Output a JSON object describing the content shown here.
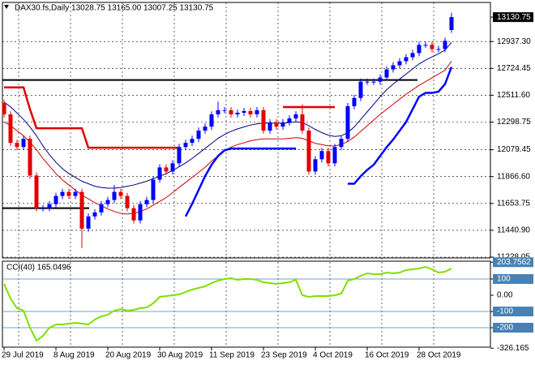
{
  "chart_data": [
    {
      "type": "candlestick",
      "title": "DAX30.fs,Daily  13028.75 13165.00 13007.25 13130.75",
      "categories": [
        "29 Jul 2019",
        null,
        null,
        null,
        null,
        null,
        null,
        null,
        "8 Aug 2019",
        null,
        null,
        null,
        null,
        null,
        null,
        null,
        "20 Aug 2019",
        null,
        null,
        null,
        null,
        null,
        null,
        null,
        "30 Aug 2019",
        null,
        null,
        null,
        null,
        null,
        null,
        null,
        "11 Sep 2019",
        null,
        null,
        null,
        null,
        null,
        null,
        null,
        "23 Sep 2019",
        null,
        null,
        null,
        null,
        null,
        null,
        null,
        "4 Oct 2019",
        null,
        null,
        null,
        null,
        null,
        null,
        null,
        "16 Oct 2019",
        null,
        null,
        null,
        null,
        null,
        null,
        null,
        "28 Oct 2019",
        null,
        null,
        null,
        null,
        null
      ],
      "open": [
        12450,
        12360,
        12134,
        12101,
        12166,
        11875,
        11616,
        11616,
        11648,
        11713,
        11745,
        11713,
        11745,
        11454,
        11551,
        11583,
        11648,
        11681,
        11745,
        11713,
        11616,
        11519,
        11648,
        11681,
        11842,
        11939,
        11907,
        11972,
        12101,
        12134,
        12166,
        12231,
        12263,
        12360,
        12393,
        12393,
        12360,
        12373,
        12386,
        12360,
        12393,
        12231,
        12296,
        12263,
        12296,
        12328,
        12360,
        12231,
        11907,
        12004,
        12069,
        11972,
        12101,
        12166,
        12425,
        12490,
        12619,
        12619,
        12619,
        12652,
        12716,
        12749,
        12781,
        12813,
        12846,
        12911,
        12911,
        12878,
        12878,
        13028.75
      ],
      "high": [
        12475,
        12385,
        12159,
        12191,
        12191,
        11900,
        11641,
        11673,
        11738,
        11770,
        11770,
        11770,
        11770,
        11576,
        11608,
        11673,
        11706,
        11800,
        11770,
        11738,
        11641,
        11673,
        11706,
        11867,
        11964,
        11964,
        11997,
        12126,
        12159,
        12191,
        12256,
        12288,
        12385,
        12460,
        12418,
        12418,
        12398,
        12411,
        12411,
        12418,
        12418,
        12321,
        12321,
        12321,
        12353,
        12385,
        12440,
        12256,
        12029,
        12094,
        12094,
        12126,
        12191,
        12450,
        12515,
        12644,
        12644,
        12644,
        12677,
        12741,
        12774,
        12806,
        12838,
        12871,
        12936,
        12936,
        12936,
        12903,
        12968,
        13165
      ],
      "low": [
        12335,
        12109,
        12076,
        12076,
        11850,
        11591,
        11591,
        11591,
        11623,
        11688,
        11688,
        11688,
        11300,
        11429,
        11526,
        11558,
        11623,
        11656,
        11688,
        11591,
        11494,
        11494,
        11623,
        11656,
        11817,
        11882,
        11882,
        11947,
        12076,
        12109,
        12141,
        12206,
        12238,
        12335,
        12368,
        12335,
        12335,
        12348,
        12335,
        12335,
        12206,
        12206,
        12238,
        12238,
        12271,
        12303,
        12206,
        11882,
        11882,
        11979,
        11947,
        11947,
        12076,
        12141,
        12400,
        12465,
        12594,
        12594,
        12594,
        12627,
        12691,
        12724,
        12756,
        12788,
        12821,
        12886,
        12853,
        12853,
        12853,
        13007.25
      ],
      "close": [
        12360,
        12134,
        12101,
        12166,
        11875,
        11616,
        11616,
        11648,
        11713,
        11745,
        11713,
        11745,
        11454,
        11551,
        11583,
        11648,
        11681,
        11745,
        11713,
        11616,
        11519,
        11648,
        11681,
        11842,
        11939,
        11907,
        11972,
        12101,
        12134,
        12166,
        12231,
        12263,
        12360,
        12393,
        12393,
        12360,
        12373,
        12386,
        12360,
        12393,
        12231,
        12296,
        12263,
        12296,
        12328,
        12360,
        12231,
        11907,
        12004,
        12069,
        11972,
        12101,
        12166,
        12425,
        12490,
        12619,
        12619,
        12619,
        12652,
        12716,
        12749,
        12781,
        12813,
        12846,
        12911,
        12911,
        12878,
        12878,
        12943,
        13130.75
      ],
      "up_color": "#0000ff",
      "down_color": "#e00000",
      "overlays": [
        {
          "color": "#000080",
          "width": 1,
          "values": [
            12457,
            12420,
            12370,
            12320,
            12260,
            12190,
            12110,
            12040,
            11980,
            11930,
            11890,
            11860,
            11830,
            11810,
            11790,
            11780,
            11775,
            11775,
            11780,
            11790,
            11800,
            11815,
            11830,
            11850,
            11870,
            11890,
            11915,
            11945,
            11975,
            12010,
            12050,
            12090,
            12130,
            12170,
            12200,
            12225,
            12245,
            12260,
            12275,
            12285,
            12290,
            12290,
            12290,
            12290,
            12295,
            12300,
            12295,
            12270,
            12240,
            12215,
            12195,
            12185,
            12190,
            12215,
            12260,
            12320,
            12380,
            12440,
            12500,
            12555,
            12600,
            12640,
            12680,
            12720,
            12760,
            12790,
            12815,
            12840,
            12870,
            12930
          ]
        },
        {
          "color": "#d00000",
          "width": 1,
          "values": [
            12300,
            12270,
            12230,
            12190,
            12140,
            12080,
            12010,
            11950,
            11890,
            11840,
            11800,
            11760,
            11720,
            11690,
            11660,
            11635,
            11610,
            11590,
            11575,
            11570,
            11575,
            11590,
            11610,
            11640,
            11670,
            11700,
            11740,
            11780,
            11820,
            11860,
            11900,
            11940,
            11990,
            12030,
            12070,
            12100,
            12120,
            12135,
            12150,
            12160,
            12165,
            12165,
            12165,
            12165,
            12170,
            12175,
            12170,
            12150,
            12130,
            12120,
            12110,
            12110,
            12120,
            12145,
            12180,
            12225,
            12270,
            12315,
            12360,
            12400,
            12440,
            12480,
            12520,
            12555,
            12590,
            12620,
            12650,
            12680,
            12710,
            12781
          ]
        },
        {
          "color": "#e00000",
          "width": 2.5,
          "values": [
            12574,
            12574,
            12574,
            12574,
            12400,
            12250,
            12250,
            12250,
            12250,
            12250,
            12250,
            12250,
            12250,
            12095,
            12095,
            12095,
            12095,
            12095,
            12095,
            12095,
            12095,
            12095,
            12095,
            12095,
            12095,
            12095,
            12095,
            12095,
            null,
            null,
            null,
            null,
            null,
            null,
            null,
            null,
            null,
            null,
            null,
            null,
            null,
            null,
            null,
            12418,
            12418,
            12418,
            12418,
            12418,
            12418,
            12418,
            12418,
            12418,
            null,
            null,
            null,
            null,
            null,
            null,
            null,
            null,
            null,
            null,
            null,
            null,
            null,
            null,
            null,
            null,
            null,
            null
          ]
        },
        {
          "color": "#0000ff",
          "width": 2.5,
          "values": [
            null,
            null,
            null,
            null,
            null,
            null,
            null,
            null,
            null,
            null,
            null,
            null,
            null,
            null,
            null,
            null,
            null,
            null,
            null,
            null,
            null,
            null,
            null,
            null,
            null,
            null,
            null,
            null,
            11551,
            11650,
            11760,
            11870,
            11960,
            12030,
            12075,
            12089,
            12089,
            12089,
            12089,
            12089,
            12089,
            12089,
            12089,
            12089,
            12089,
            12089,
            null,
            null,
            null,
            null,
            null,
            null,
            null,
            11810,
            11810,
            11870,
            11920,
            11960,
            12030,
            12100,
            12160,
            12230,
            12300,
            12400,
            12500,
            12530,
            12530,
            12540,
            12600,
            12736
          ]
        }
      ],
      "levels": [
        12632,
        11616
      ],
      "ylim": [
        11221.6,
        13247.3
      ],
      "yticks": [
        13130.75,
        {
          "value": 12937.3,
          "label": "12937.30"
        },
        12724.45,
        {
          "value": 12511.6,
          "label": "12511.60"
        },
        12298.75,
        12079.45,
        {
          "value": 11866.6,
          "label": "11866.60"
        },
        11653.75,
        {
          "value": 11440.9,
          "label": "11440.90"
        },
        11228.05
      ],
      "grid": true
    },
    {
      "type": "line",
      "title": "CCI(40) 165.0496",
      "color": "#7fe000",
      "values": [
        70,
        -20,
        -80,
        -95,
        -200,
        -280,
        -250,
        -200,
        -180,
        -180,
        -175,
        -170,
        -175,
        -180,
        -150,
        -130,
        -120,
        -95,
        -85,
        -95,
        -90,
        -80,
        -75,
        -50,
        -10,
        -5,
        0,
        5,
        20,
        35,
        45,
        55,
        75,
        90,
        100,
        105,
        95,
        100,
        100,
        95,
        80,
        75,
        70,
        75,
        80,
        95,
        0,
        -10,
        -5,
        -5,
        -5,
        0,
        10,
        90,
        100,
        120,
        135,
        130,
        130,
        140,
        135,
        140,
        155,
        160,
        165,
        175,
        160,
        140,
        145,
        165.0496
      ],
      "levels": [
        100,
        -100,
        -200
      ],
      "ylim": [
        -320,
        210
      ],
      "yticks": [
        203.7562,
        100,
        {
          "value": 0,
          "label": "0.00"
        },
        -100,
        -200,
        -326.165
      ]
    }
  ]
}
